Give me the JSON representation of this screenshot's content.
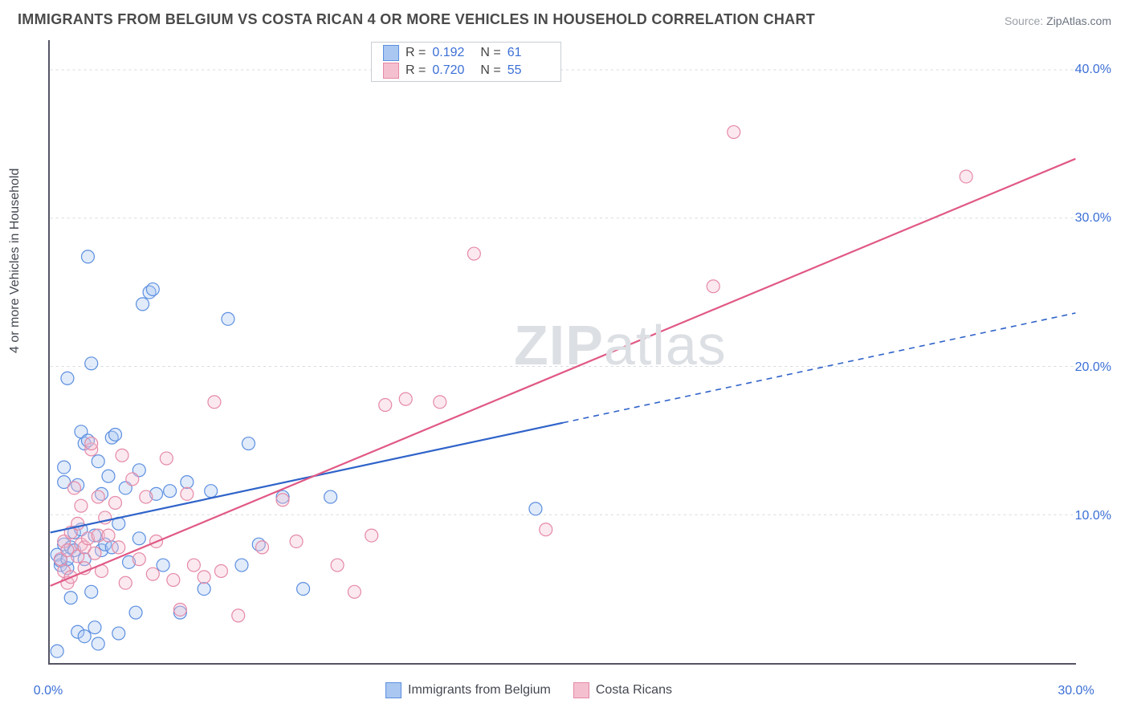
{
  "title": "IMMIGRANTS FROM BELGIUM VS COSTA RICAN 4 OR MORE VEHICLES IN HOUSEHOLD CORRELATION CHART",
  "source_label": "Source:",
  "source_value": "ZipAtlas.com",
  "watermark_bold": "ZIP",
  "watermark_rest": "atlas",
  "ylabel": "4 or more Vehicles in Household",
  "chart": {
    "type": "scatter",
    "background_color": "#ffffff",
    "grid_color": "#d6d9de",
    "grid_dash": "3,4",
    "axis_color": "#50555e",
    "xlim": [
      0,
      30
    ],
    "ylim": [
      0,
      42
    ],
    "xticks": [
      0,
      30
    ],
    "xtick_labels": [
      "0.0%",
      "30.0%"
    ],
    "yticks": [
      10,
      20,
      30,
      40
    ],
    "ytick_labels": [
      "10.0%",
      "20.0%",
      "30.0%",
      "40.0%"
    ],
    "marker_radius": 8,
    "marker_stroke_width": 1.2,
    "marker_fill_opacity": 0.35,
    "trend_line_width": 2.2,
    "series": [
      {
        "name": "Immigrants from Belgium",
        "color_stroke": "#5c8fe0",
        "color_fill": "#a9c7f0",
        "trend_color": "#2f63c9",
        "R": "0.192",
        "N": "61",
        "trend": {
          "x1": 0,
          "y1": 8.8,
          "x2": 15.0,
          "y2": 16.2,
          "solid_until_x": 15.0,
          "dash_to_x": 30,
          "dash_to_y": 23.6
        },
        "points": [
          [
            0.2,
            7.3
          ],
          [
            0.3,
            6.6
          ],
          [
            0.3,
            6.9
          ],
          [
            0.4,
            8.0
          ],
          [
            0.4,
            13.2
          ],
          [
            0.4,
            12.2
          ],
          [
            0.5,
            19.2
          ],
          [
            0.5,
            6.4
          ],
          [
            0.5,
            7.0
          ],
          [
            0.6,
            4.4
          ],
          [
            0.6,
            7.8
          ],
          [
            0.7,
            8.8
          ],
          [
            0.7,
            7.6
          ],
          [
            0.8,
            2.1
          ],
          [
            0.8,
            12.0
          ],
          [
            0.9,
            9.0
          ],
          [
            0.9,
            15.6
          ],
          [
            1.0,
            7.0
          ],
          [
            1.0,
            14.8
          ],
          [
            1.0,
            1.8
          ],
          [
            1.1,
            27.4
          ],
          [
            1.1,
            15.0
          ],
          [
            1.2,
            4.8
          ],
          [
            1.2,
            20.2
          ],
          [
            1.3,
            8.6
          ],
          [
            1.3,
            2.4
          ],
          [
            1.4,
            13.6
          ],
          [
            1.5,
            7.6
          ],
          [
            1.5,
            11.4
          ],
          [
            1.6,
            8.0
          ],
          [
            1.7,
            12.6
          ],
          [
            1.8,
            7.8
          ],
          [
            1.8,
            15.2
          ],
          [
            1.9,
            15.4
          ],
          [
            2.0,
            2.0
          ],
          [
            2.0,
            9.4
          ],
          [
            2.2,
            11.8
          ],
          [
            2.3,
            6.8
          ],
          [
            2.5,
            3.4
          ],
          [
            2.6,
            13.0
          ],
          [
            2.6,
            8.4
          ],
          [
            2.7,
            24.2
          ],
          [
            2.9,
            25.0
          ],
          [
            3.0,
            25.2
          ],
          [
            3.1,
            11.4
          ],
          [
            3.3,
            6.6
          ],
          [
            3.5,
            11.6
          ],
          [
            3.8,
            3.4
          ],
          [
            4.0,
            12.2
          ],
          [
            4.5,
            5.0
          ],
          [
            4.7,
            11.6
          ],
          [
            5.2,
            23.2
          ],
          [
            5.6,
            6.6
          ],
          [
            5.8,
            14.8
          ],
          [
            6.1,
            8.0
          ],
          [
            6.8,
            11.2
          ],
          [
            7.4,
            5.0
          ],
          [
            8.2,
            11.2
          ],
          [
            14.2,
            10.4
          ],
          [
            0.2,
            0.8
          ],
          [
            1.4,
            1.3
          ]
        ]
      },
      {
        "name": "Costa Ricans",
        "color_stroke": "#e589a6",
        "color_fill": "#f4c0d0",
        "trend_color": "#e05984",
        "R": "0.720",
        "N": "55",
        "trend": {
          "x1": 0,
          "y1": 5.2,
          "x2": 30,
          "y2": 34.0,
          "solid_until_x": 30
        },
        "points": [
          [
            0.3,
            7.0
          ],
          [
            0.4,
            6.2
          ],
          [
            0.4,
            8.2
          ],
          [
            0.5,
            7.6
          ],
          [
            0.5,
            5.4
          ],
          [
            0.6,
            8.8
          ],
          [
            0.6,
            5.8
          ],
          [
            0.7,
            11.8
          ],
          [
            0.8,
            9.4
          ],
          [
            0.8,
            7.2
          ],
          [
            0.9,
            10.6
          ],
          [
            0.9,
            8.0
          ],
          [
            1.0,
            6.4
          ],
          [
            1.0,
            7.8
          ],
          [
            1.1,
            8.4
          ],
          [
            1.2,
            14.4
          ],
          [
            1.2,
            14.8
          ],
          [
            1.3,
            7.4
          ],
          [
            1.4,
            8.6
          ],
          [
            1.4,
            11.2
          ],
          [
            1.5,
            6.2
          ],
          [
            1.6,
            9.8
          ],
          [
            1.7,
            8.6
          ],
          [
            1.9,
            10.8
          ],
          [
            2.0,
            7.8
          ],
          [
            2.2,
            5.4
          ],
          [
            2.4,
            12.4
          ],
          [
            2.6,
            7.0
          ],
          [
            2.8,
            11.2
          ],
          [
            3.0,
            6.0
          ],
          [
            3.1,
            8.2
          ],
          [
            3.4,
            13.8
          ],
          [
            3.6,
            5.6
          ],
          [
            3.8,
            3.6
          ],
          [
            4.0,
            11.4
          ],
          [
            4.2,
            6.6
          ],
          [
            4.5,
            5.8
          ],
          [
            4.8,
            17.6
          ],
          [
            5.0,
            6.2
          ],
          [
            5.5,
            3.2
          ],
          [
            6.2,
            7.8
          ],
          [
            6.8,
            11.0
          ],
          [
            7.2,
            8.2
          ],
          [
            8.4,
            6.6
          ],
          [
            8.9,
            4.8
          ],
          [
            9.4,
            8.6
          ],
          [
            9.8,
            17.4
          ],
          [
            10.4,
            17.8
          ],
          [
            11.4,
            17.6
          ],
          [
            12.4,
            27.6
          ],
          [
            14.5,
            9.0
          ],
          [
            19.4,
            25.4
          ],
          [
            20.0,
            35.8
          ],
          [
            26.8,
            32.8
          ],
          [
            2.1,
            14.0
          ]
        ]
      }
    ]
  },
  "legend_top_labels": {
    "R": "R =",
    "N": "N ="
  },
  "legend_bottom": [
    {
      "swatch": 0
    },
    {
      "swatch": 1
    }
  ]
}
